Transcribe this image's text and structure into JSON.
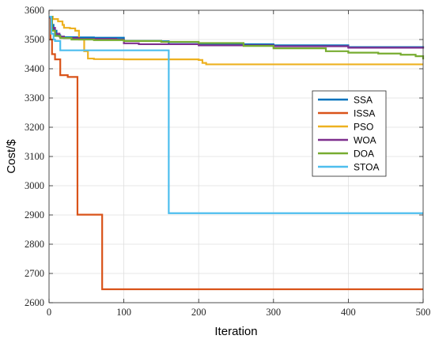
{
  "chart_data": {
    "type": "line",
    "title": "",
    "xlabel": "Iteration",
    "ylabel": "Cost/$",
    "xlim": [
      0,
      500
    ],
    "ylim": [
      2600,
      3600
    ],
    "xticks": [
      "0",
      "100",
      "200",
      "300",
      "400",
      "500"
    ],
    "yticks": [
      "2600",
      "2700",
      "2800",
      "2900",
      "3000",
      "3100",
      "3200",
      "3300",
      "3400",
      "3500",
      "3600"
    ],
    "grid": true,
    "legend_position": "right",
    "series": [
      {
        "name": "SSA",
        "color": "#0072BD",
        "x": [
          0,
          3,
          6,
          10,
          15,
          20,
          40,
          60,
          95,
          100,
          150,
          160,
          210,
          300,
          400,
          500
        ],
        "y": [
          3578,
          3550,
          3530,
          3515,
          3510,
          3508,
          3507,
          3506,
          3506,
          3495,
          3494,
          3485,
          3484,
          3480,
          3474,
          3472
        ]
      },
      {
        "name": "ISSA",
        "color": "#D95319",
        "x": [
          0,
          2,
          4,
          8,
          15,
          25,
          37,
          38,
          70,
          71,
          100,
          200,
          300,
          400,
          500
        ],
        "y": [
          3578,
          3500,
          3450,
          3432,
          3378,
          3372,
          3372,
          2901,
          2901,
          2646,
          2646,
          2646,
          2646,
          2646,
          2646
        ]
      },
      {
        "name": "PSO",
        "color": "#EDB120",
        "x": [
          0,
          5,
          12,
          18,
          20,
          28,
          35,
          40,
          47,
          52,
          60,
          100,
          160,
          200,
          205,
          210,
          300,
          400,
          500
        ],
        "y": [
          3578,
          3570,
          3562,
          3550,
          3540,
          3538,
          3530,
          3500,
          3460,
          3435,
          3433,
          3432,
          3432,
          3430,
          3420,
          3415,
          3415,
          3415,
          3415
        ]
      },
      {
        "name": "WOA",
        "color": "#7E2F8E",
        "x": [
          0,
          4,
          8,
          14,
          20,
          40,
          90,
          100,
          120,
          200,
          300,
          400,
          500
        ],
        "y": [
          3575,
          3540,
          3520,
          3510,
          3505,
          3502,
          3500,
          3487,
          3484,
          3480,
          3477,
          3472,
          3469
        ]
      },
      {
        "name": "DOA",
        "color": "#77AC30",
        "x": [
          0,
          4,
          8,
          15,
          30,
          60,
          100,
          150,
          200,
          260,
          300,
          370,
          400,
          440,
          470,
          490,
          500
        ],
        "y": [
          3578,
          3530,
          3512,
          3505,
          3500,
          3498,
          3495,
          3492,
          3488,
          3478,
          3470,
          3460,
          3455,
          3452,
          3448,
          3443,
          3432
        ]
      },
      {
        "name": "STOA",
        "color": "#4DBEEE",
        "x": [
          0,
          3,
          6,
          8,
          14,
          15,
          100,
          159,
          160,
          200,
          300,
          400,
          500
        ],
        "y": [
          3578,
          3520,
          3500,
          3495,
          3495,
          3463,
          3463,
          3463,
          2906,
          2906,
          2906,
          2906,
          2906
        ]
      }
    ]
  }
}
